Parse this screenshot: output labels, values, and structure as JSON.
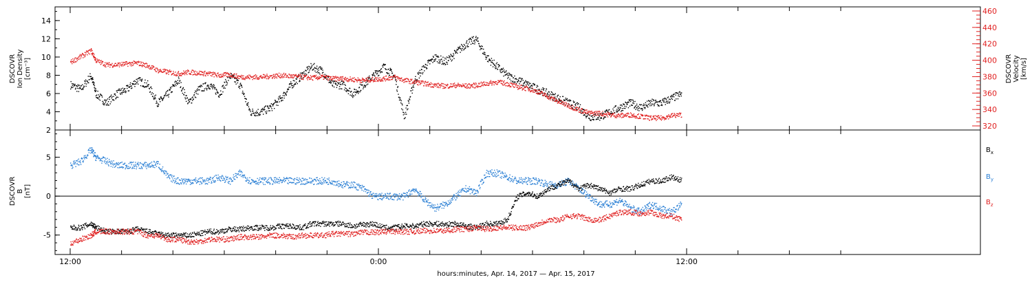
{
  "chart_data": [
    {
      "type": "scatter",
      "panel": "top",
      "ylabel_left": [
        "DSCOVR",
        "Ion Density",
        "[cm⁻³]"
      ],
      "ylabel_right": [
        "DSCOVR",
        "Velocity",
        "[km/s]"
      ],
      "y_left_ticks": [
        "2",
        "4",
        "6",
        "8",
        "10",
        "12",
        "14"
      ],
      "y_right_ticks": [
        "320",
        "340",
        "360",
        "380",
        "400",
        "420",
        "440",
        "460"
      ],
      "ylim_left": [
        2,
        15.5
      ],
      "ylim_right": [
        315,
        465
      ],
      "series": [
        {
          "axis": "left",
          "color": "#000000",
          "x_hours": [
            0,
            0.4,
            0.8,
            1.0,
            1.4,
            1.8,
            2.2,
            2.6,
            3.0,
            3.4,
            3.8,
            4.2,
            4.6,
            5.0,
            5.4,
            5.8,
            6.2,
            6.6,
            7.0,
            7.4,
            7.8,
            8.2,
            8.6,
            9.0,
            9.4,
            9.8,
            10.2,
            10.6,
            11.0,
            11.4,
            11.8,
            12.2,
            12.6,
            13.0,
            13.4,
            13.8,
            14.2,
            14.6,
            15.0,
            15.4,
            15.8,
            16.2,
            16.6,
            17.0,
            17.4,
            17.8,
            18.2,
            18.6,
            19.0,
            19.4,
            19.8,
            20.2,
            20.6,
            21.0,
            21.4,
            21.8,
            22.2,
            22.6,
            23.0,
            23.4,
            23.8
          ],
          "values": [
            7,
            6.5,
            8,
            6,
            5,
            6,
            6.5,
            7.5,
            7,
            5,
            6,
            7.5,
            5,
            6.5,
            7,
            6,
            8,
            7,
            4,
            4,
            4.5,
            5.5,
            7,
            8,
            9,
            8.5,
            7,
            7,
            6,
            7,
            8,
            9,
            8,
            3.5,
            7.5,
            9,
            10,
            9.5,
            10.5,
            11.5,
            12,
            10,
            9,
            8,
            7.5,
            7,
            6.5,
            6,
            5.5,
            5,
            4.5,
            3.5,
            3.5,
            4,
            4.5,
            5,
            4.5,
            5,
            5,
            5.5,
            6
          ]
        },
        {
          "axis": "right",
          "color": "#e02020",
          "x_hours": [
            0,
            0.4,
            0.8,
            1.0,
            1.4,
            1.8,
            2.2,
            2.6,
            3.0,
            3.4,
            3.8,
            4.2,
            4.6,
            5.0,
            5.4,
            5.8,
            6.2,
            6.6,
            7.0,
            7.4,
            7.8,
            8.2,
            8.6,
            9.0,
            9.4,
            9.8,
            10.2,
            10.6,
            11.0,
            11.4,
            11.8,
            12.2,
            12.6,
            13.0,
            13.4,
            13.8,
            14.2,
            14.6,
            15.0,
            15.4,
            15.8,
            16.2,
            16.6,
            17.0,
            17.4,
            17.8,
            18.2,
            18.6,
            19.0,
            19.4,
            19.8,
            20.2,
            20.6,
            21.0,
            21.4,
            21.8,
            22.2,
            22.6,
            23.0,
            23.4,
            23.8
          ],
          "values": [
            398,
            405,
            412,
            400,
            395,
            395,
            396,
            397,
            394,
            388,
            386,
            384,
            386,
            385,
            384,
            382,
            383,
            380,
            380,
            380,
            381,
            382,
            381,
            380,
            379,
            380,
            378,
            378,
            377,
            376,
            377,
            378,
            380,
            376,
            374,
            372,
            370,
            369,
            370,
            369,
            370,
            372,
            374,
            372,
            368,
            366,
            362,
            356,
            350,
            345,
            340,
            336,
            336,
            334,
            333,
            334,
            332,
            330,
            330,
            333,
            334
          ]
        }
      ]
    },
    {
      "type": "scatter",
      "panel": "bottom",
      "ylabel_left": [
        "DSCOVR",
        "B",
        "[nT]"
      ],
      "y_left_ticks": [
        "-5",
        "0",
        "5"
      ],
      "ylim_left": [
        -7.5,
        8.5
      ],
      "zero_line": true,
      "legend": [
        {
          "name": "B",
          "sub": "x",
          "color": "#000000"
        },
        {
          "name": "B",
          "sub": "y",
          "color": "#2a7fd4"
        },
        {
          "name": "B",
          "sub": "z",
          "color": "#e02020"
        }
      ],
      "series": [
        {
          "name": "Bx",
          "color": "#000000",
          "x_hours": [
            0,
            0.4,
            0.8,
            1.0,
            1.4,
            1.8,
            2.2,
            2.6,
            3.0,
            3.4,
            3.8,
            4.2,
            4.6,
            5.0,
            5.4,
            5.8,
            6.2,
            6.6,
            7.0,
            7.4,
            7.8,
            8.2,
            8.6,
            9.0,
            9.4,
            9.8,
            10.2,
            10.6,
            11.0,
            11.4,
            11.8,
            12.2,
            12.6,
            13.0,
            13.4,
            13.8,
            14.2,
            14.6,
            15.0,
            15.4,
            15.8,
            16.2,
            16.6,
            17.0,
            17.4,
            17.8,
            18.2,
            18.6,
            19.0,
            19.4,
            19.8,
            20.2,
            20.6,
            21.0,
            21.4,
            21.8,
            22.2,
            22.6,
            23.0,
            23.4,
            23.8
          ],
          "values": [
            -4,
            -4,
            -3.5,
            -4,
            -4.5,
            -4.5,
            -4.5,
            -4.2,
            -4.5,
            -4.8,
            -5,
            -5,
            -5,
            -4.8,
            -4.5,
            -4.5,
            -4.2,
            -4.2,
            -4,
            -4,
            -4,
            -3.8,
            -3.8,
            -4,
            -3.5,
            -3.5,
            -3.5,
            -3.5,
            -3.8,
            -3.6,
            -3.5,
            -4,
            -4,
            -3.8,
            -3.8,
            -3.5,
            -3.5,
            -3.6,
            -3.5,
            -3.8,
            -4,
            -3.5,
            -3.5,
            -3,
            0,
            0.5,
            0,
            1,
            1.5,
            2,
            1,
            1.5,
            1,
            0.5,
            1,
            1,
            1.5,
            2,
            2,
            2.5,
            2
          ]
        },
        {
          "name": "By",
          "color": "#2a7fd4",
          "x_hours": [
            0,
            0.4,
            0.8,
            1.0,
            1.4,
            1.8,
            2.2,
            2.6,
            3.0,
            3.4,
            3.8,
            4.2,
            4.6,
            5.0,
            5.4,
            5.8,
            6.2,
            6.6,
            7.0,
            7.4,
            7.8,
            8.2,
            8.6,
            9.0,
            9.4,
            9.8,
            10.2,
            10.6,
            11.0,
            11.4,
            11.8,
            12.2,
            12.6,
            13.0,
            13.4,
            13.8,
            14.2,
            14.6,
            15.0,
            15.4,
            15.8,
            16.2,
            16.6,
            17.0,
            17.4,
            17.8,
            18.2,
            18.6,
            19.0,
            19.4,
            19.8,
            20.2,
            20.6,
            21.0,
            21.4,
            21.8,
            22.2,
            22.6,
            23.0,
            23.4,
            23.8
          ],
          "values": [
            4,
            4.5,
            6,
            5,
            4.5,
            4,
            4,
            4,
            4,
            4.2,
            2.5,
            2,
            2,
            2,
            2,
            2.5,
            2,
            3,
            2,
            2,
            2,
            2,
            2,
            2,
            2,
            2,
            2,
            1.5,
            1.5,
            1,
            0,
            0,
            0,
            0,
            1,
            -0.5,
            -1.5,
            -1,
            0,
            1,
            0.5,
            3,
            3,
            2.5,
            2,
            2,
            2,
            1.5,
            1.5,
            2,
            1,
            0,
            -1,
            -1,
            -0.5,
            -1.5,
            -2,
            -1,
            -1.5,
            -2,
            -1
          ]
        },
        {
          "name": "Bz",
          "color": "#e02020",
          "x_hours": [
            0,
            0.4,
            0.8,
            1.0,
            1.4,
            1.8,
            2.2,
            2.6,
            3.0,
            3.4,
            3.8,
            4.2,
            4.6,
            5.0,
            5.4,
            5.8,
            6.2,
            6.6,
            7.0,
            7.4,
            7.8,
            8.2,
            8.6,
            9.0,
            9.4,
            9.8,
            10.2,
            10.6,
            11.0,
            11.4,
            11.8,
            12.2,
            12.6,
            13.0,
            13.4,
            13.8,
            14.2,
            14.6,
            15.0,
            15.4,
            15.8,
            16.2,
            16.6,
            17.0,
            17.4,
            17.8,
            18.2,
            18.6,
            19.0,
            19.4,
            19.8,
            20.2,
            20.6,
            21.0,
            21.4,
            21.8,
            22.2,
            22.6,
            23.0,
            23.4,
            23.8
          ],
          "values": [
            -6,
            -5.5,
            -5,
            -4.5,
            -4.5,
            -4.5,
            -4.5,
            -4.5,
            -5,
            -5,
            -5.5,
            -5.5,
            -5.8,
            -5.8,
            -5.5,
            -5.5,
            -5.5,
            -5.2,
            -5.2,
            -5.2,
            -5,
            -5,
            -5.2,
            -5,
            -5,
            -5,
            -4.8,
            -4.8,
            -4.8,
            -4.6,
            -4.6,
            -4.5,
            -4.5,
            -4.5,
            -4.5,
            -4.4,
            -4.4,
            -4.4,
            -4.2,
            -4.2,
            -4,
            -4.2,
            -4,
            -4,
            -4,
            -4,
            -3.5,
            -3,
            -3,
            -2.5,
            -2.5,
            -3,
            -3,
            -2.5,
            -2,
            -2,
            -2.2,
            -2,
            -2.5,
            -2.5,
            -3
          ]
        }
      ]
    }
  ],
  "x_axis": {
    "ticks": [
      "12:00",
      "0:00",
      "12:00"
    ],
    "label": "hours:minutes, Apr. 14, 2017 — Apr. 15, 2017"
  }
}
